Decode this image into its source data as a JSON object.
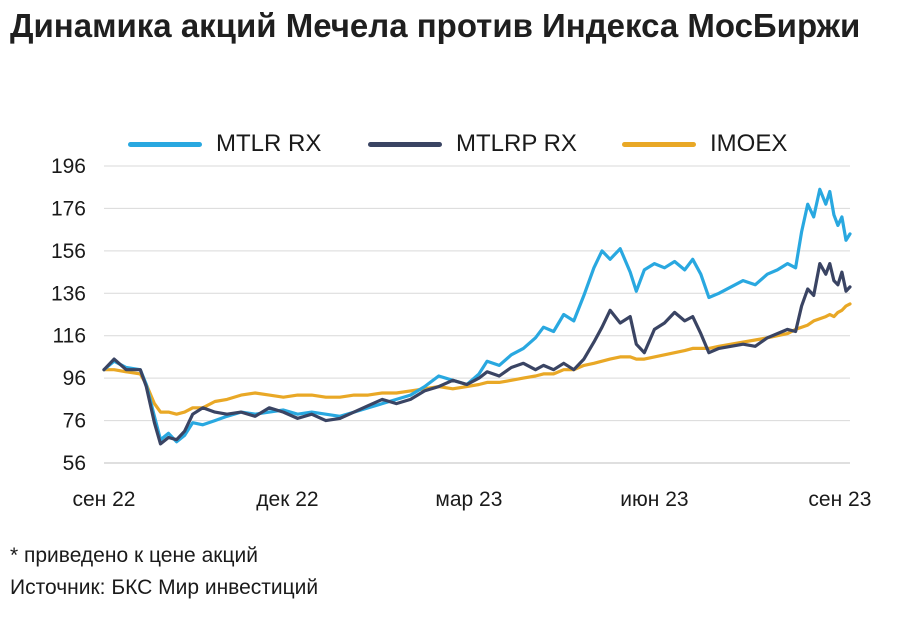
{
  "title": "Динамика акций Мечела против Индекса МосБиржи",
  "footnote": "*  приведено к цене акций",
  "source": "Источник: БКС Мир инвестиций",
  "chart_data": {
    "type": "line",
    "title": "Динамика акций Мечела против Индекса МосБиржи",
    "xlabel": "",
    "ylabel": "",
    "x_tick_labels": [
      "сен 22",
      "дек 22",
      "мар 23",
      "июн 23",
      "сен 23"
    ],
    "x_tick_dates": [
      "2022-09-01",
      "2022-12-01",
      "2023-03-01",
      "2023-06-01",
      "2023-09-01"
    ],
    "y_ticks": [
      56,
      76,
      96,
      116,
      136,
      156,
      176,
      196
    ],
    "ylim": [
      56,
      196
    ],
    "xlim": [
      "2022-09-01",
      "2023-09-06"
    ],
    "grid": true,
    "legend_position": "top",
    "series": [
      {
        "name": "MTLR RX",
        "color": "#29a8e0",
        "points": [
          [
            "2022-09-01",
            100
          ],
          [
            "2022-09-06",
            104
          ],
          [
            "2022-09-12",
            101
          ],
          [
            "2022-09-19",
            100
          ],
          [
            "2022-09-22",
            93
          ],
          [
            "2022-09-26",
            78
          ],
          [
            "2022-09-29",
            67
          ],
          [
            "2022-10-03",
            70
          ],
          [
            "2022-10-07",
            66
          ],
          [
            "2022-10-11",
            69
          ],
          [
            "2022-10-15",
            75
          ],
          [
            "2022-10-20",
            74
          ],
          [
            "2022-10-26",
            76
          ],
          [
            "2022-11-01",
            78
          ],
          [
            "2022-11-08",
            80
          ],
          [
            "2022-11-15",
            79
          ],
          [
            "2022-11-22",
            80
          ],
          [
            "2022-11-29",
            81
          ],
          [
            "2022-12-06",
            79
          ],
          [
            "2022-12-13",
            80
          ],
          [
            "2022-12-20",
            79
          ],
          [
            "2022-12-27",
            78
          ],
          [
            "2023-01-03",
            80
          ],
          [
            "2023-01-10",
            82
          ],
          [
            "2023-01-17",
            84
          ],
          [
            "2023-01-24",
            86
          ],
          [
            "2023-01-31",
            88
          ],
          [
            "2023-02-07",
            92
          ],
          [
            "2023-02-14",
            97
          ],
          [
            "2023-02-21",
            95
          ],
          [
            "2023-02-28",
            93
          ],
          [
            "2023-03-06",
            98
          ],
          [
            "2023-03-10",
            104
          ],
          [
            "2023-03-16",
            102
          ],
          [
            "2023-03-22",
            107
          ],
          [
            "2023-03-28",
            110
          ],
          [
            "2023-04-03",
            115
          ],
          [
            "2023-04-07",
            120
          ],
          [
            "2023-04-12",
            118
          ],
          [
            "2023-04-17",
            126
          ],
          [
            "2023-04-22",
            123
          ],
          [
            "2023-04-27",
            135
          ],
          [
            "2023-05-02",
            148
          ],
          [
            "2023-05-06",
            156
          ],
          [
            "2023-05-10",
            152
          ],
          [
            "2023-05-15",
            157
          ],
          [
            "2023-05-20",
            146
          ],
          [
            "2023-05-23",
            137
          ],
          [
            "2023-05-27",
            147
          ],
          [
            "2023-06-01",
            150
          ],
          [
            "2023-06-06",
            148
          ],
          [
            "2023-06-11",
            151
          ],
          [
            "2023-06-16",
            147
          ],
          [
            "2023-06-20",
            152
          ],
          [
            "2023-06-24",
            145
          ],
          [
            "2023-06-28",
            134
          ],
          [
            "2023-07-03",
            136
          ],
          [
            "2023-07-09",
            139
          ],
          [
            "2023-07-15",
            142
          ],
          [
            "2023-07-21",
            140
          ],
          [
            "2023-07-27",
            145
          ],
          [
            "2023-08-01",
            147
          ],
          [
            "2023-08-06",
            150
          ],
          [
            "2023-08-10",
            148
          ],
          [
            "2023-08-13",
            165
          ],
          [
            "2023-08-16",
            178
          ],
          [
            "2023-08-19",
            172
          ],
          [
            "2023-08-22",
            185
          ],
          [
            "2023-08-25",
            178
          ],
          [
            "2023-08-27",
            184
          ],
          [
            "2023-08-29",
            173
          ],
          [
            "2023-08-31",
            168
          ],
          [
            "2023-09-02",
            172
          ],
          [
            "2023-09-04",
            161
          ],
          [
            "2023-09-06",
            164
          ]
        ]
      },
      {
        "name": "MTLRP RX",
        "color": "#3a4463",
        "points": [
          [
            "2022-09-01",
            100
          ],
          [
            "2022-09-06",
            105
          ],
          [
            "2022-09-12",
            100
          ],
          [
            "2022-09-19",
            100
          ],
          [
            "2022-09-22",
            92
          ],
          [
            "2022-09-26",
            75
          ],
          [
            "2022-09-29",
            65
          ],
          [
            "2022-10-03",
            68
          ],
          [
            "2022-10-07",
            67
          ],
          [
            "2022-10-11",
            71
          ],
          [
            "2022-10-15",
            79
          ],
          [
            "2022-10-20",
            82
          ],
          [
            "2022-10-26",
            80
          ],
          [
            "2022-11-01",
            79
          ],
          [
            "2022-11-08",
            80
          ],
          [
            "2022-11-15",
            78
          ],
          [
            "2022-11-22",
            82
          ],
          [
            "2022-11-29",
            80
          ],
          [
            "2022-12-06",
            77
          ],
          [
            "2022-12-13",
            79
          ],
          [
            "2022-12-20",
            76
          ],
          [
            "2022-12-27",
            77
          ],
          [
            "2023-01-03",
            80
          ],
          [
            "2023-01-10",
            83
          ],
          [
            "2023-01-17",
            86
          ],
          [
            "2023-01-24",
            84
          ],
          [
            "2023-01-31",
            86
          ],
          [
            "2023-02-07",
            90
          ],
          [
            "2023-02-14",
            92
          ],
          [
            "2023-02-21",
            95
          ],
          [
            "2023-02-28",
            93
          ],
          [
            "2023-03-06",
            96
          ],
          [
            "2023-03-10",
            99
          ],
          [
            "2023-03-16",
            97
          ],
          [
            "2023-03-22",
            101
          ],
          [
            "2023-03-28",
            103
          ],
          [
            "2023-04-03",
            100
          ],
          [
            "2023-04-07",
            102
          ],
          [
            "2023-04-12",
            100
          ],
          [
            "2023-04-17",
            103
          ],
          [
            "2023-04-22",
            100
          ],
          [
            "2023-04-27",
            105
          ],
          [
            "2023-05-02",
            113
          ],
          [
            "2023-05-06",
            120
          ],
          [
            "2023-05-10",
            128
          ],
          [
            "2023-05-15",
            122
          ],
          [
            "2023-05-20",
            125
          ],
          [
            "2023-05-23",
            112
          ],
          [
            "2023-05-27",
            108
          ],
          [
            "2023-06-01",
            119
          ],
          [
            "2023-06-06",
            122
          ],
          [
            "2023-06-11",
            127
          ],
          [
            "2023-06-16",
            123
          ],
          [
            "2023-06-20",
            125
          ],
          [
            "2023-06-24",
            117
          ],
          [
            "2023-06-28",
            108
          ],
          [
            "2023-07-03",
            110
          ],
          [
            "2023-07-09",
            111
          ],
          [
            "2023-07-15",
            112
          ],
          [
            "2023-07-21",
            111
          ],
          [
            "2023-07-27",
            115
          ],
          [
            "2023-08-01",
            117
          ],
          [
            "2023-08-06",
            119
          ],
          [
            "2023-08-10",
            118
          ],
          [
            "2023-08-13",
            130
          ],
          [
            "2023-08-16",
            138
          ],
          [
            "2023-08-19",
            135
          ],
          [
            "2023-08-22",
            150
          ],
          [
            "2023-08-25",
            145
          ],
          [
            "2023-08-27",
            150
          ],
          [
            "2023-08-29",
            142
          ],
          [
            "2023-08-31",
            140
          ],
          [
            "2023-09-02",
            146
          ],
          [
            "2023-09-04",
            137
          ],
          [
            "2023-09-06",
            139
          ]
        ]
      },
      {
        "name": "IMOEX",
        "color": "#e9a826",
        "points": [
          [
            "2022-09-01",
            100
          ],
          [
            "2022-09-06",
            100
          ],
          [
            "2022-09-12",
            99
          ],
          [
            "2022-09-19",
            98
          ],
          [
            "2022-09-22",
            93
          ],
          [
            "2022-09-26",
            84
          ],
          [
            "2022-09-29",
            80
          ],
          [
            "2022-10-03",
            80
          ],
          [
            "2022-10-07",
            79
          ],
          [
            "2022-10-11",
            80
          ],
          [
            "2022-10-15",
            82
          ],
          [
            "2022-10-20",
            82
          ],
          [
            "2022-10-26",
            85
          ],
          [
            "2022-11-01",
            86
          ],
          [
            "2022-11-08",
            88
          ],
          [
            "2022-11-15",
            89
          ],
          [
            "2022-11-22",
            88
          ],
          [
            "2022-11-29",
            87
          ],
          [
            "2022-12-06",
            88
          ],
          [
            "2022-12-13",
            88
          ],
          [
            "2022-12-20",
            87
          ],
          [
            "2022-12-27",
            87
          ],
          [
            "2023-01-03",
            88
          ],
          [
            "2023-01-10",
            88
          ],
          [
            "2023-01-17",
            89
          ],
          [
            "2023-01-24",
            89
          ],
          [
            "2023-01-31",
            90
          ],
          [
            "2023-02-07",
            91
          ],
          [
            "2023-02-14",
            92
          ],
          [
            "2023-02-21",
            91
          ],
          [
            "2023-02-28",
            92
          ],
          [
            "2023-03-06",
            93
          ],
          [
            "2023-03-10",
            94
          ],
          [
            "2023-03-16",
            94
          ],
          [
            "2023-03-22",
            95
          ],
          [
            "2023-03-28",
            96
          ],
          [
            "2023-04-03",
            97
          ],
          [
            "2023-04-07",
            98
          ],
          [
            "2023-04-12",
            98
          ],
          [
            "2023-04-17",
            100
          ],
          [
            "2023-04-22",
            100
          ],
          [
            "2023-04-27",
            102
          ],
          [
            "2023-05-02",
            103
          ],
          [
            "2023-05-06",
            104
          ],
          [
            "2023-05-10",
            105
          ],
          [
            "2023-05-15",
            106
          ],
          [
            "2023-05-20",
            106
          ],
          [
            "2023-05-23",
            105
          ],
          [
            "2023-05-27",
            105
          ],
          [
            "2023-06-01",
            106
          ],
          [
            "2023-06-06",
            107
          ],
          [
            "2023-06-11",
            108
          ],
          [
            "2023-06-16",
            109
          ],
          [
            "2023-06-20",
            110
          ],
          [
            "2023-06-24",
            110
          ],
          [
            "2023-06-28",
            110
          ],
          [
            "2023-07-03",
            111
          ],
          [
            "2023-07-09",
            112
          ],
          [
            "2023-07-15",
            113
          ],
          [
            "2023-07-21",
            114
          ],
          [
            "2023-07-27",
            115
          ],
          [
            "2023-08-01",
            116
          ],
          [
            "2023-08-06",
            117
          ],
          [
            "2023-08-10",
            119
          ],
          [
            "2023-08-13",
            120
          ],
          [
            "2023-08-16",
            121
          ],
          [
            "2023-08-19",
            123
          ],
          [
            "2023-08-22",
            124
          ],
          [
            "2023-08-25",
            125
          ],
          [
            "2023-08-27",
            126
          ],
          [
            "2023-08-29",
            125
          ],
          [
            "2023-08-31",
            127
          ],
          [
            "2023-09-02",
            128
          ],
          [
            "2023-09-04",
            130
          ],
          [
            "2023-09-06",
            131
          ]
        ]
      }
    ]
  }
}
